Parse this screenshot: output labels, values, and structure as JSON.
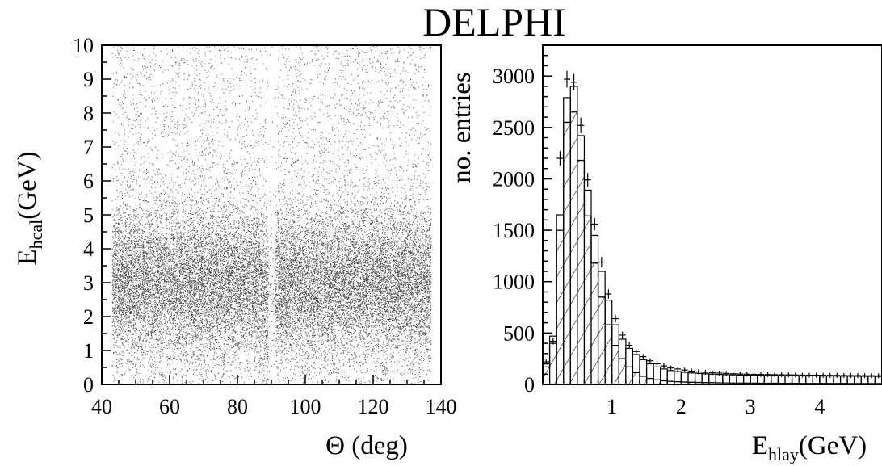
{
  "title": "DELPHI",
  "chart_data": [
    {
      "type": "scatter",
      "xlabel": "Θ (deg)",
      "ylabel_main": "E",
      "ylabel_sub": "hcal",
      "ylabel_unit": "(GeV)",
      "xlim": [
        40,
        140
      ],
      "ylim": [
        0,
        10
      ],
      "x_ticks": [
        "40",
        "60",
        "80",
        "100",
        "120",
        "140"
      ],
      "y_ticks": [
        "0",
        "1",
        "2",
        "3",
        "4",
        "5",
        "6",
        "7",
        "8",
        "9",
        "10"
      ],
      "data_range": {
        "theta": [
          43,
          137
        ]
      },
      "density_peak_y": 3.0,
      "gap_x": [
        89,
        91
      ]
    },
    {
      "type": "bar",
      "xlabel_main": "E",
      "xlabel_sub": "hlay",
      "xlabel_unit": "(GeV)",
      "ylabel": "no. entries",
      "xlim": [
        0,
        4.9
      ],
      "ylim": [
        0,
        3300
      ],
      "x_ticks": [
        "1",
        "2",
        "3",
        "4"
      ],
      "y_ticks": [
        "0",
        "500",
        "1000",
        "1500",
        "2000",
        "2500",
        "3000"
      ],
      "bin_width": 0.1,
      "series": [
        {
          "style": "outline",
          "values": [
            200,
            470,
            1650,
            2790,
            2900,
            2420,
            1890,
            1450,
            1100,
            820,
            580,
            440,
            350,
            290,
            240,
            200,
            170,
            150,
            135,
            125,
            118,
            112,
            108,
            104,
            100,
            97,
            95,
            93,
            91,
            90,
            89,
            88,
            87,
            86,
            85,
            85,
            84,
            84,
            83,
            83,
            82,
            82,
            81,
            81,
            80,
            80,
            79,
            79,
            78
          ]
        },
        {
          "style": "hatched",
          "values": [
            170,
            400,
            1500,
            2550,
            2650,
            2180,
            1640,
            1180,
            850,
            580,
            380,
            250,
            170,
            115,
            80,
            58,
            45,
            36,
            30,
            26,
            23,
            21,
            19,
            18,
            17,
            16,
            15,
            14,
            14,
            13,
            13,
            12,
            12,
            12,
            11,
            11,
            11,
            10,
            10,
            10,
            10,
            10,
            10,
            10,
            9,
            9,
            9,
            9,
            9
          ]
        },
        {
          "style": "points",
          "values": [
            220,
            420,
            2200,
            2970,
            2940,
            2520,
            1990,
            1560,
            1190,
            880,
            640,
            480,
            380,
            320,
            270,
            230,
            200,
            180,
            160,
            150,
            140,
            130,
            122,
            118,
            114,
            110,
            107,
            104,
            102,
            100,
            98,
            97,
            96,
            95,
            94,
            93,
            92,
            91,
            90,
            90,
            89,
            88,
            88,
            87,
            86,
            86,
            85,
            85,
            84
          ]
        }
      ]
    }
  ]
}
